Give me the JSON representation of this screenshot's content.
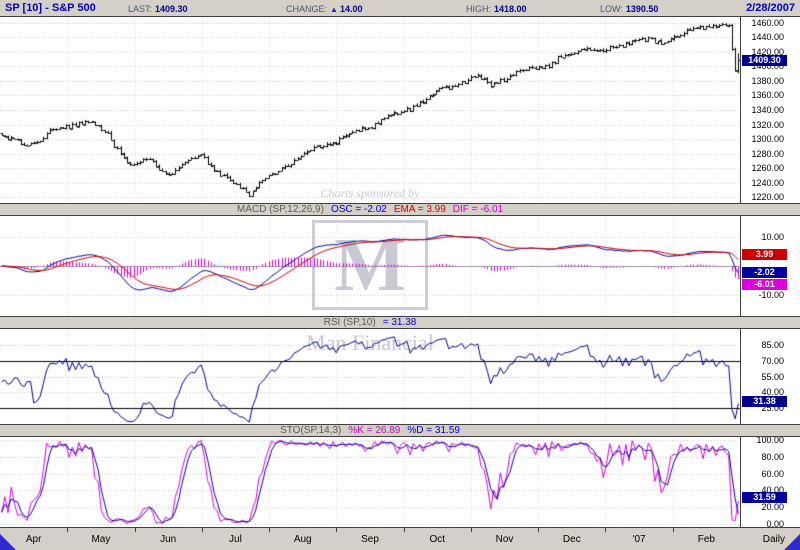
{
  "header": {
    "symbol": "SP [10] - S&P 500",
    "last_label": "LAST:",
    "last_value": "1409.30",
    "change_label": "CHANGE:",
    "change_arrow": "▲",
    "change_value": "14.00",
    "high_label": "HIGH:",
    "high_value": "1418.00",
    "low_label": "LOW:",
    "low_value": "1390.50",
    "date": "2/28/2007"
  },
  "watermark": {
    "caption": "Charts sponsored by",
    "logo_letter": "M",
    "sponsor": "Man Financial"
  },
  "panel_titles": {
    "macd": {
      "name": "MACD (SP,12,26,9)",
      "osc": "OSC = -2.02",
      "ema": "EMA = 3.99",
      "dif": "DIF = -6.01"
    },
    "rsi": {
      "name": "RSI (SP,10)",
      "value": "= 31.38"
    },
    "sto": {
      "name": "STO(SP,14,3)",
      "k": "%K = 26.89",
      "d": "%D = 31.59"
    }
  },
  "xaxis": {
    "interval_label": "Daily"
  },
  "colors": {
    "navy": "#000090",
    "blue_line": "#0000a0",
    "red_line": "#cc0000",
    "magenta_line": "#dd00dd",
    "bar_black": "#000000",
    "panel_gray": "#d4d0c8",
    "corner_blue": "#2d2dcf",
    "title_blue": "#0000bb"
  },
  "chart_data": [
    {
      "id": "price",
      "type": "ohlc-bar",
      "symbol": "SP [10] - S&P 500",
      "interval": "Daily",
      "x_month_labels": [
        "Apr",
        "May",
        "Jun",
        "Jul",
        "Aug",
        "Sep",
        "Oct",
        "Nov",
        "Dec",
        "'07",
        "Feb"
      ],
      "n_bars": 230,
      "y_tick_labels": [
        "1460.00",
        "1440.00",
        "1420.00",
        "1400.00",
        "1380.00",
        "1360.00",
        "1340.00",
        "1320.00",
        "1300.00",
        "1280.00",
        "1260.00",
        "1240.00",
        "1220.00"
      ],
      "y_range": [
        1212,
        1468
      ],
      "last_close": 1409.3,
      "last_bar": {
        "open": 1394.0,
        "high": 1418.0,
        "low": 1390.5,
        "close": 1409.3
      },
      "close_anchors": [
        [
          0,
          1302
        ],
        [
          8,
          1291
        ],
        [
          15,
          1309
        ],
        [
          22,
          1320
        ],
        [
          27,
          1326
        ],
        [
          33,
          1306
        ],
        [
          40,
          1262
        ],
        [
          46,
          1273
        ],
        [
          52,
          1249
        ],
        [
          57,
          1266
        ],
        [
          62,
          1281
        ],
        [
          67,
          1253
        ],
        [
          72,
          1241
        ],
        [
          77,
          1226
        ],
        [
          82,
          1245
        ],
        [
          88,
          1263
        ],
        [
          94,
          1279
        ],
        [
          100,
          1292
        ],
        [
          106,
          1301
        ],
        [
          112,
          1313
        ],
        [
          118,
          1327
        ],
        [
          124,
          1337
        ],
        [
          130,
          1350
        ],
        [
          136,
          1365
        ],
        [
          142,
          1378
        ],
        [
          148,
          1384
        ],
        [
          152,
          1375
        ],
        [
          158,
          1389
        ],
        [
          164,
          1397
        ],
        [
          170,
          1403
        ],
        [
          176,
          1417
        ],
        [
          182,
          1426
        ],
        [
          186,
          1419
        ],
        [
          192,
          1429
        ],
        [
          198,
          1439
        ],
        [
          204,
          1432
        ],
        [
          210,
          1443
        ],
        [
          216,
          1451
        ],
        [
          222,
          1459
        ],
        [
          226,
          1453
        ],
        [
          228,
          1395.3
        ],
        [
          229,
          1409.3
        ]
      ]
    },
    {
      "id": "macd",
      "type": "line+histogram",
      "label": "MACD (SP,12,26,9)",
      "params": {
        "fast": 12,
        "slow": 26,
        "signal": 9
      },
      "series": [
        {
          "name": "OSC",
          "color": "#0000a0",
          "last": -2.02
        },
        {
          "name": "EMA",
          "color": "#cc0000",
          "last": 3.99
        },
        {
          "name": "DIF",
          "color": "#dd00dd",
          "last": -6.01,
          "render": "histogram"
        }
      ],
      "y_tick_labels": [
        "10.00",
        "-10.00"
      ],
      "y_range": [
        -17,
        17
      ]
    },
    {
      "id": "rsi",
      "type": "line",
      "label": "RSI (SP,10)",
      "period": 10,
      "series": [
        {
          "name": "RSI",
          "color": "#000090",
          "last": 31.38
        }
      ],
      "reference_lines": [
        70,
        25
      ],
      "y_tick_labels": [
        "85.00",
        "70.00",
        "55.00",
        "40.00",
        "25.00"
      ],
      "y_range": [
        10,
        100
      ]
    },
    {
      "id": "sto",
      "type": "line",
      "label": "STO(SP,14,3)",
      "params": {
        "k": 14,
        "d": 3
      },
      "series": [
        {
          "name": "%K",
          "color": "#dd00dd",
          "last": 26.89
        },
        {
          "name": "%D",
          "color": "#0000a0",
          "last": 31.59
        }
      ],
      "y_tick_labels": [
        "100.00",
        "80.00",
        "60.00",
        "40.00",
        "20.00",
        "0.00"
      ],
      "y_range": [
        -4,
        104
      ]
    }
  ]
}
